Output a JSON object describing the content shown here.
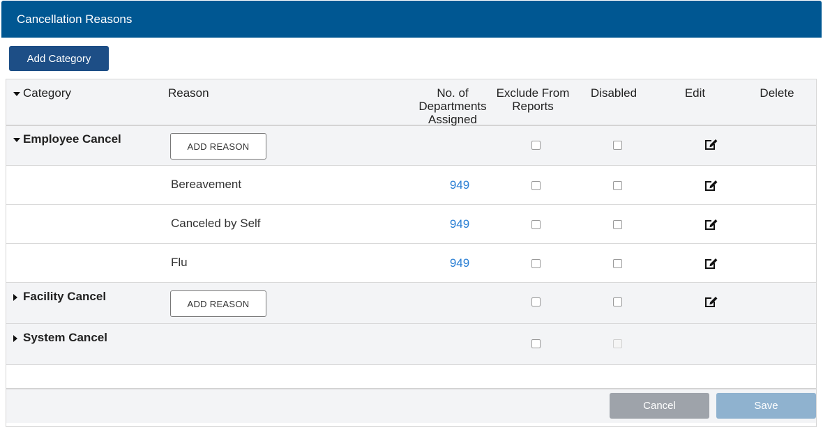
{
  "title": "Cancellation Reasons",
  "add_category_label": "Add Category",
  "headers": {
    "category": "Category",
    "reason": "Reason",
    "departments_line1": "No. of",
    "departments_line2": "Departments",
    "departments_line3": "Assigned",
    "exclude_line1": "Exclude From",
    "exclude_line2": "Reports",
    "disabled": "Disabled",
    "edit": "Edit",
    "delete": "Delete"
  },
  "categories": [
    {
      "name": "Employee Cancel",
      "expanded": true,
      "add_reason_label": "ADD REASON",
      "reasons": [
        {
          "name": "Bereavement",
          "departments": "949"
        },
        {
          "name": "Canceled by Self",
          "departments": "949"
        },
        {
          "name": "Flu",
          "departments": "949"
        }
      ]
    },
    {
      "name": "Facility Cancel",
      "expanded": false,
      "add_reason_label": "ADD REASON"
    },
    {
      "name": "System Cancel",
      "expanded": false
    }
  ],
  "footer": {
    "cancel_label": "Cancel",
    "save_label": "Save"
  },
  "icons": {
    "expand": "caret-down-icon",
    "collapse": "caret-right-icon",
    "edit": "edit-icon"
  }
}
